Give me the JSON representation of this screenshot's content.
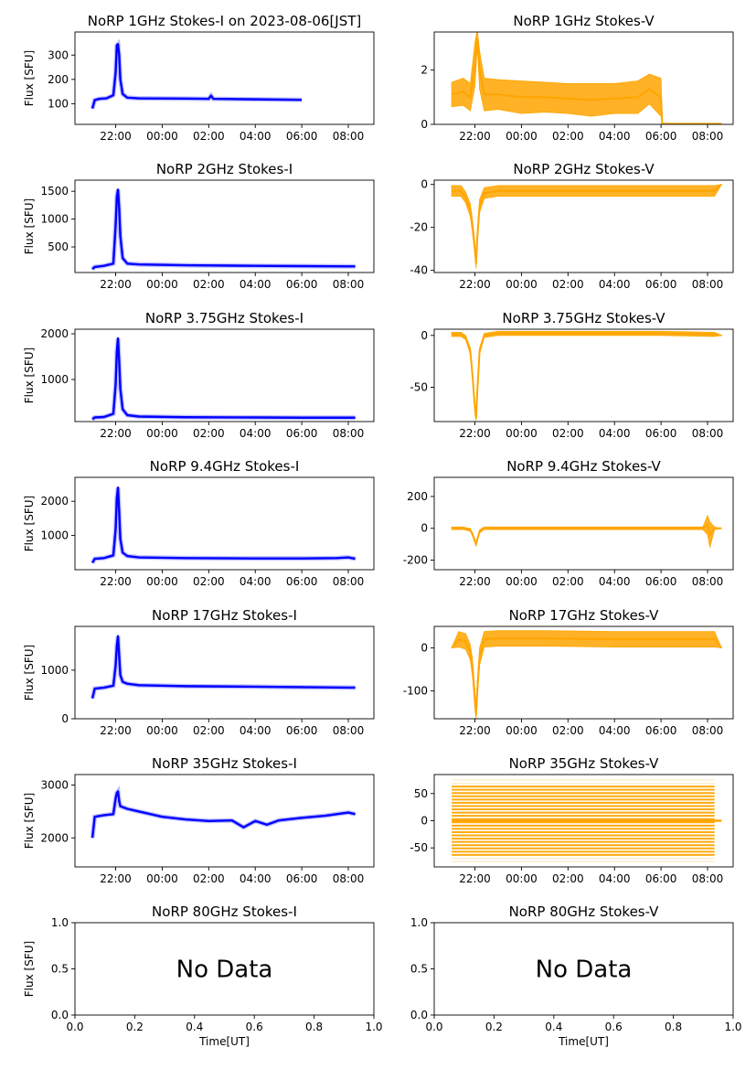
{
  "chart_data": [
    {
      "type": "line",
      "title": "NoRP 1GHz Stokes-I on 2023-08-06[JST]",
      "ylabel": "Flux [SFU]",
      "xlabel": "",
      "series_color": "#0000ff",
      "yticks": [
        100,
        200,
        300
      ],
      "ylim": [
        15,
        395
      ],
      "xticks": [
        "22:00",
        "00:00",
        "02:00",
        "04:00",
        "06:00",
        "08:00"
      ],
      "xlim": [
        20.25,
        33.1
      ],
      "data_end": 30.0,
      "series": [
        {
          "x": [
            21.0,
            21.1,
            21.3,
            21.6,
            21.9,
            22.0,
            22.05,
            22.1,
            22.15,
            22.2,
            22.3,
            22.5,
            23.0,
            25.0,
            26.0,
            26.1,
            26.2,
            28.0,
            30.0
          ],
          "y": [
            80,
            115,
            120,
            122,
            135,
            230,
            340,
            345,
            300,
            200,
            140,
            125,
            122,
            121,
            120,
            133,
            120,
            118,
            116
          ]
        }
      ]
    },
    {
      "type": "scatter",
      "title": "NoRP 1GHz Stokes-V",
      "ylabel": "",
      "xlabel": "",
      "series_color": "#ffa500",
      "yticks": [
        0,
        2
      ],
      "ylim": [
        0,
        3.4
      ],
      "xticks": [
        "22:00",
        "00:00",
        "02:00",
        "04:00",
        "06:00",
        "08:00"
      ],
      "xlim": [
        20.25,
        33.1
      ],
      "data_end": 32.6,
      "series": [
        {
          "x": [
            21.0,
            21.5,
            21.8,
            22.0,
            22.1,
            22.2,
            22.4,
            23.0,
            24.0,
            25.0,
            26.0,
            27.0,
            28.0,
            29.0,
            29.5,
            30.0,
            30.05,
            31.0,
            32.6
          ],
          "y": [
            1.1,
            1.2,
            1.0,
            2.2,
            3.2,
            2.0,
            1.1,
            1.1,
            1.0,
            1.0,
            0.95,
            0.9,
            0.95,
            1.0,
            1.3,
            1.0,
            0.02,
            0.02,
            0.02
          ],
          "spread": [
            0.45,
            0.5,
            0.5,
            0.8,
            0.3,
            0.7,
            0.6,
            0.55,
            0.6,
            0.55,
            0.55,
            0.6,
            0.55,
            0.6,
            0.55,
            0.7,
            0,
            0,
            0
          ]
        }
      ]
    },
    {
      "type": "line",
      "title": "NoRP 2GHz Stokes-I",
      "ylabel": "Flux [SFU]",
      "xlabel": "",
      "series_color": "#0000ff",
      "yticks": [
        500,
        1000,
        1500
      ],
      "ylim": [
        40,
        1700
      ],
      "xticks": [
        "22:00",
        "00:00",
        "02:00",
        "04:00",
        "06:00",
        "08:00"
      ],
      "xlim": [
        20.25,
        33.1
      ],
      "data_end": 32.3,
      "series": [
        {
          "x": [
            21.0,
            21.1,
            21.5,
            21.9,
            22.0,
            22.05,
            22.1,
            22.15,
            22.2,
            22.3,
            22.5,
            23.0,
            25.0,
            28.0,
            30.0,
            32.3
          ],
          "y": [
            100,
            140,
            160,
            200,
            900,
            1400,
            1530,
            1200,
            700,
            300,
            200,
            185,
            170,
            160,
            155,
            150
          ]
        }
      ]
    },
    {
      "type": "scatter",
      "title": "NoRP 2GHz Stokes-V",
      "ylabel": "",
      "xlabel": "",
      "series_color": "#ffa500",
      "yticks": [
        0,
        -20,
        -40
      ],
      "ylim": [
        -41,
        2
      ],
      "xticks": [
        "22:00",
        "00:00",
        "02:00",
        "04:00",
        "06:00",
        "08:00"
      ],
      "xlim": [
        20.25,
        33.1
      ],
      "data_end": 32.6,
      "series": [
        {
          "x": [
            21.0,
            21.4,
            21.6,
            21.8,
            21.9,
            22.0,
            22.05,
            22.1,
            22.2,
            22.4,
            23.0,
            25.0,
            28.0,
            30.0,
            32.3,
            32.6
          ],
          "y": [
            -3,
            -3,
            -6,
            -12,
            -20,
            -30,
            -37,
            -25,
            -10,
            -4,
            -3,
            -3,
            -3,
            -3,
            -3,
            0
          ],
          "spread": [
            2.5,
            2.5,
            2.5,
            3,
            3,
            3,
            2,
            3,
            3,
            2.5,
            2.5,
            2.5,
            2.5,
            2.5,
            2.5,
            0
          ]
        }
      ]
    },
    {
      "type": "line",
      "title": "NoRP 3.75GHz Stokes-I",
      "ylabel": "Flux [SFU]",
      "xlabel": "",
      "series_color": "#0000ff",
      "yticks": [
        1000,
        2000
      ],
      "ylim": [
        80,
        2100
      ],
      "xticks": [
        "22:00",
        "00:00",
        "02:00",
        "04:00",
        "06:00",
        "08:00"
      ],
      "xlim": [
        20.25,
        33.1
      ],
      "data_end": 32.3,
      "series": [
        {
          "x": [
            21.0,
            21.1,
            21.5,
            21.9,
            22.0,
            22.05,
            22.1,
            22.15,
            22.2,
            22.3,
            22.5,
            23.0,
            25.0,
            28.0,
            30.0,
            32.3
          ],
          "y": [
            130,
            170,
            180,
            250,
            900,
            1600,
            1900,
            1400,
            800,
            350,
            220,
            190,
            175,
            170,
            165,
            165
          ]
        }
      ]
    },
    {
      "type": "scatter",
      "title": "NoRP 3.75GHz Stokes-V",
      "ylabel": "",
      "xlabel": "",
      "series_color": "#ffa500",
      "yticks": [
        0,
        -50
      ],
      "ylim": [
        -83,
        6
      ],
      "xticks": [
        "22:00",
        "00:00",
        "02:00",
        "04:00",
        "06:00",
        "08:00"
      ],
      "xlim": [
        20.25,
        33.1
      ],
      "data_end": 32.6,
      "series": [
        {
          "x": [
            21.0,
            21.4,
            21.6,
            21.8,
            21.9,
            22.0,
            22.05,
            22.1,
            22.2,
            22.4,
            23.0,
            25.0,
            28.0,
            30.0,
            32.3,
            32.6
          ],
          "y": [
            1,
            1,
            -2,
            -15,
            -40,
            -70,
            -80,
            -55,
            -15,
            0,
            2,
            2,
            2,
            2,
            1,
            0
          ],
          "spread": [
            2,
            2,
            2,
            3,
            3,
            3,
            2,
            3,
            3,
            2,
            2,
            2,
            2,
            2,
            2,
            0
          ]
        }
      ]
    },
    {
      "type": "line",
      "title": "NoRP 9.4GHz Stokes-I",
      "ylabel": "Flux [SFU]",
      "xlabel": "",
      "series_color": "#0000ff",
      "yticks": [
        1000,
        2000
      ],
      "ylim": [
        0,
        2700
      ],
      "xticks": [
        "22:00",
        "00:00",
        "02:00",
        "04:00",
        "06:00",
        "08:00"
      ],
      "xlim": [
        20.25,
        33.1
      ],
      "data_end": 32.3,
      "series": [
        {
          "x": [
            21.0,
            21.1,
            21.5,
            21.9,
            22.0,
            22.05,
            22.1,
            22.15,
            22.2,
            22.3,
            22.5,
            23.0,
            25.0,
            28.0,
            30.0,
            31.5,
            32.0,
            32.3
          ],
          "y": [
            200,
            320,
            340,
            420,
            1200,
            2100,
            2400,
            1700,
            900,
            500,
            400,
            360,
            340,
            330,
            330,
            340,
            360,
            320
          ]
        }
      ]
    },
    {
      "type": "scatter",
      "title": "NoRP 9.4GHz Stokes-V",
      "ylabel": "",
      "xlabel": "",
      "series_color": "#ffa500",
      "yticks": [
        200,
        0,
        -200
      ],
      "ylim": [
        -260,
        320
      ],
      "xticks": [
        "22:00",
        "00:00",
        "02:00",
        "04:00",
        "06:00",
        "08:00"
      ],
      "xlim": [
        20.25,
        33.1
      ],
      "data_end": 32.6,
      "series": [
        {
          "x": [
            21.0,
            21.5,
            21.8,
            21.9,
            22.0,
            22.05,
            22.1,
            22.2,
            22.4,
            23.0,
            25.0,
            28.0,
            30.0,
            31.8,
            32.0,
            32.1,
            32.3,
            32.6
          ],
          "y": [
            0,
            0,
            -10,
            -40,
            -80,
            -100,
            -70,
            -20,
            0,
            0,
            0,
            0,
            0,
            0,
            20,
            -40,
            0,
            0
          ],
          "spread": [
            8,
            8,
            8,
            10,
            10,
            8,
            10,
            10,
            8,
            8,
            8,
            8,
            8,
            8,
            60,
            80,
            8,
            0
          ]
        }
      ]
    },
    {
      "type": "line",
      "title": "NoRP 17GHz Stokes-I",
      "ylabel": "Flux [SFU]",
      "xlabel": "",
      "series_color": "#0000ff",
      "yticks": [
        0,
        1000
      ],
      "ylim": [
        0,
        1900
      ],
      "xticks": [
        "22:00",
        "00:00",
        "02:00",
        "04:00",
        "06:00",
        "08:00"
      ],
      "xlim": [
        20.25,
        33.1
      ],
      "data_end": 32.3,
      "series": [
        {
          "x": [
            21.0,
            21.1,
            21.5,
            21.9,
            22.0,
            22.05,
            22.1,
            22.15,
            22.2,
            22.3,
            22.5,
            23.0,
            25.0,
            28.0,
            30.0,
            32.3
          ],
          "y": [
            420,
            620,
            640,
            680,
            1100,
            1500,
            1700,
            1300,
            900,
            760,
            720,
            690,
            670,
            660,
            650,
            640
          ]
        }
      ]
    },
    {
      "type": "scatter",
      "title": "NoRP 17GHz Stokes-V",
      "ylabel": "",
      "xlabel": "",
      "series_color": "#ffa500",
      "yticks": [
        0,
        -100
      ],
      "ylim": [
        -165,
        50
      ],
      "xticks": [
        "22:00",
        "00:00",
        "02:00",
        "04:00",
        "06:00",
        "08:00"
      ],
      "xlim": [
        20.25,
        33.1
      ],
      "data_end": 32.6,
      "series": [
        {
          "x": [
            21.0,
            21.3,
            21.6,
            21.8,
            21.9,
            22.0,
            22.05,
            22.1,
            22.2,
            22.4,
            23.0,
            25.0,
            28.0,
            30.0,
            32.3,
            32.6
          ],
          "y": [
            0,
            20,
            15,
            -10,
            -50,
            -120,
            -155,
            -100,
            -20,
            20,
            22,
            22,
            20,
            20,
            20,
            0
          ],
          "spread": [
            0,
            18,
            18,
            18,
            20,
            20,
            10,
            20,
            20,
            18,
            18,
            18,
            18,
            18,
            18,
            0
          ]
        }
      ]
    },
    {
      "type": "line",
      "title": "NoRP 35GHz Stokes-I",
      "ylabel": "Flux [SFU]",
      "xlabel": "",
      "series_color": "#0000ff",
      "yticks": [
        2000,
        3000
      ],
      "ylim": [
        1450,
        3200
      ],
      "xticks": [
        "22:00",
        "00:00",
        "02:00",
        "04:00",
        "06:00",
        "08:00"
      ],
      "xlim": [
        20.25,
        33.1
      ],
      "data_end": 32.3,
      "series": [
        {
          "x": [
            21.0,
            21.1,
            21.5,
            21.9,
            22.0,
            22.05,
            22.1,
            22.15,
            22.2,
            22.5,
            23.0,
            24.0,
            25.0,
            26.0,
            27.0,
            27.5,
            28.0,
            28.5,
            29.0,
            30.0,
            31.0,
            32.0,
            32.3
          ],
          "y": [
            2000,
            2400,
            2430,
            2450,
            2750,
            2850,
            2880,
            2700,
            2600,
            2550,
            2500,
            2400,
            2350,
            2320,
            2330,
            2200,
            2320,
            2250,
            2330,
            2380,
            2420,
            2480,
            2450
          ]
        }
      ]
    },
    {
      "type": "scatter",
      "title": "NoRP 35GHz Stokes-V",
      "ylabel": "",
      "xlabel": "",
      "series_color": "#ffa500",
      "yticks": [
        50,
        0,
        -50
      ],
      "ylim": [
        -85,
        85
      ],
      "xticks": [
        "22:00",
        "00:00",
        "02:00",
        "04:00",
        "06:00",
        "08:00"
      ],
      "xlim": [
        20.25,
        33.1
      ],
      "data_end": 32.6,
      "series": [
        {
          "x": [
            21.0,
            32.6
          ],
          "y": [
            0,
            0
          ],
          "spread": [
            0,
            0
          ]
        }
      ]
    },
    {
      "type": "scatter",
      "title": "NoRP 80GHz Stokes-I",
      "ylabel": "Flux [SFU]",
      "xlabel": "Time[UT]",
      "annotation": "No Data",
      "yticks": [
        "0.0",
        "0.5",
        "1.0"
      ],
      "xticks": [
        "0.0",
        "0.2",
        "0.4",
        "0.6",
        "0.8",
        "1.0"
      ],
      "xlim": [
        0,
        1
      ],
      "ylim": [
        0,
        1
      ],
      "series": []
    },
    {
      "type": "scatter",
      "title": "NoRP 80GHz Stokes-V",
      "ylabel": "",
      "xlabel": "Time[UT]",
      "annotation": "No Data",
      "yticks": [
        "0.0",
        "0.5",
        "1.0"
      ],
      "xticks": [
        "0.0",
        "0.2",
        "0.4",
        "0.6",
        "0.8",
        "1.0"
      ],
      "xlim": [
        0,
        1
      ],
      "ylim": [
        0,
        1
      ],
      "series": []
    }
  ]
}
